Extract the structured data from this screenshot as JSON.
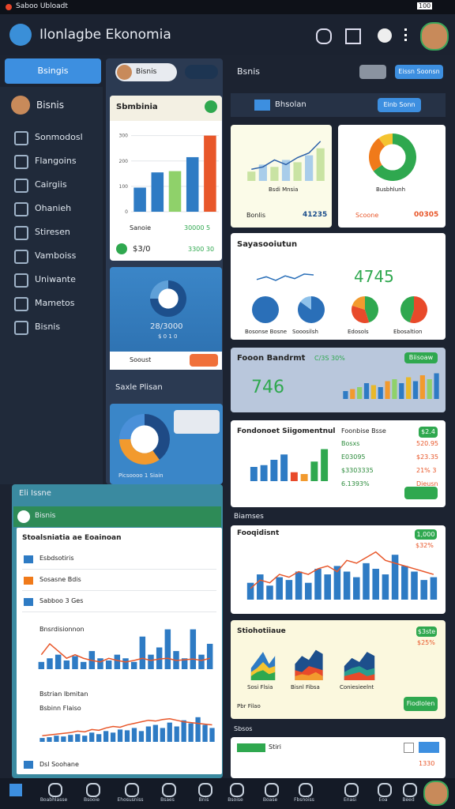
{
  "status_bar": {
    "app": "Saboo Ubloadt",
    "battery": "100"
  },
  "header": {
    "title": "Ilonlagbe Ekonomia"
  },
  "sidebar": {
    "button": "Bsingis",
    "user": "Bisnis",
    "items": [
      "Sonmodosl",
      "Flangoins",
      "Cairgiis",
      "Ohanieh",
      "Stiresen",
      "Vamboiss",
      "Uniwante",
      "Mametos",
      "Bisnis"
    ]
  },
  "middle": {
    "chip": "Bisnis",
    "card1": {
      "title": "Sbmbinia",
      "row1_label": "Sanoie",
      "row1_value": "30000 5",
      "row2_label": "$3/0",
      "row2_value": "3300 30"
    },
    "card2": {
      "value": "28/3000",
      "sub": "$ 0 1 0",
      "button_label": "Sooust"
    },
    "section": "Saxle Plisan",
    "card3": {
      "label": "Picsoooo 1 Siain"
    }
  },
  "right": {
    "title": "Bsnis",
    "button": "Eissn Soonsn",
    "panel_title": "Bhsolan",
    "panel_button": "Einb Sonn",
    "cardA": {
      "caption": "Bsdi Mnsia",
      "label": "Bonlis",
      "value": "41235"
    },
    "cardB": {
      "caption": "Busbhlunh",
      "label": "Scoone",
      "value": "00305"
    },
    "cardC": {
      "title": "Sayasooiutun",
      "value": "4745",
      "labels": [
        "Bosonse Bosne",
        "Sooosilsh",
        "Edosols",
        "Ebosaltion"
      ]
    },
    "cardD": {
      "title": "Fooon Bandrmt",
      "tag": "C/3S 30%",
      "value": "746",
      "button": "Biisoaw"
    },
    "cardE": {
      "title": "Fondonoet Siigomentnul",
      "side_title": "Foonbise Bsse",
      "rows": [
        [
          "Bosxs",
          "520.95"
        ],
        [
          "E03095",
          "$23.35"
        ],
        [
          "$3303335",
          "21% 3"
        ],
        [
          "6.1393%",
          "Dieusn"
        ]
      ],
      "tag": "$2.4"
    },
    "section": "Biamses",
    "cardF": {
      "title": "Fooqidisnt",
      "tag": "1,000",
      "value": "$32%"
    },
    "cardG": {
      "title": "Stiohotiiaue",
      "tag": "$3ste",
      "value": "$25%",
      "labels": [
        "Sosi Flsia",
        "Bisnl Fibsa",
        "Coniesieelnt"
      ],
      "button": "Fiodlolen",
      "foot": "Pbr Filao"
    },
    "section2": "Sbsos",
    "cardH": {
      "title": "Stiri",
      "value": "1330"
    }
  },
  "overlay": {
    "title": "Eli Issne",
    "sub": "Bisnis",
    "heading": "Stoalsniatia ae Eoainoan",
    "items": [
      "Esbdsotiris",
      "Sosasne Bdis",
      "Sabboo 3 Ges"
    ],
    "chart1_title": "Bnsrdisionnon",
    "chart2_title": "Bstrian Ibmitan",
    "chart2_sub": "Bsbinn Flaiso",
    "foot": "Dsl Soohane"
  },
  "nav": [
    "Boabhlasse",
    "Bsooie",
    "Ehosusniss",
    "Bsaes",
    "Bnis",
    "Bsoise",
    "Boase",
    "Fbsnoiss",
    "Enasi",
    "Eoa",
    "Beed"
  ],
  "charts": [
    {
      "type": "bar",
      "values": [
        95,
        155,
        160,
        215,
        300
      ],
      "colors": [
        "#2e7bc4",
        "#2e7bc4",
        "#8fd16a",
        "#2e7bc4",
        "#e8572a"
      ],
      "ylim": [
        0,
        330
      ],
      "yticks": [
        0,
        100,
        200,
        300
      ]
    },
    {
      "type": "bar",
      "values": [
        20,
        35,
        30,
        45,
        40,
        55,
        70
      ],
      "colors": [
        "#c9e3a3",
        "#a9cdea",
        "#c9e3a3",
        "#a9cdea",
        "#c9e3a3",
        "#a9cdea",
        "#c9e3a3"
      ],
      "line": [
        25,
        30,
        45,
        35,
        50,
        60,
        85
      ],
      "line_color": "#2a5fa8",
      "ylim": [
        0,
        100
      ]
    },
    {
      "type": "pie",
      "donut": true,
      "values": [
        65,
        25,
        10
      ],
      "colors": [
        "#2fa84f",
        "#f07a1a",
        "#f4c430"
      ]
    },
    {
      "type": "pie",
      "donut": true,
      "values": [
        75,
        25
      ],
      "colors": [
        "#1d4f8c",
        "#5fa0d8"
      ]
    },
    {
      "type": "pie",
      "donut": true,
      "values": [
        40,
        35,
        25
      ],
      "colors": [
        "#1e4a85",
        "#f29a2e",
        "#4a90d9"
      ]
    },
    {
      "type": "pie",
      "values": [
        100
      ],
      "colors": [
        "#2a6fb8"
      ]
    },
    {
      "type": "pie",
      "values": [
        85,
        15
      ],
      "colors": [
        "#2a6fb8",
        "#8ec1ea"
      ]
    },
    {
      "type": "pie",
      "values": [
        45,
        35,
        20
      ],
      "colors": [
        "#2fa84f",
        "#e84a2a",
        "#f29a2e"
      ]
    },
    {
      "type": "pie",
      "values": [
        55,
        45
      ],
      "colors": [
        "#e84a2a",
        "#2fa84f"
      ]
    },
    {
      "type": "line",
      "values": [
        40,
        55,
        35,
        60,
        45,
        70,
        65
      ],
      "ylim": [
        0,
        100
      ],
      "color": "#2a6fb8"
    },
    {
      "type": "bar",
      "values": [
        20,
        25,
        30,
        40,
        35,
        30,
        45,
        50,
        40,
        55,
        45,
        60,
        50,
        65
      ],
      "colors": [
        "#2e7bc4",
        "#f29a2e",
        "#8fd16a",
        "#2e7bc4",
        "#e8b82a"
      ],
      "ylim": [
        0,
        70
      ]
    },
    {
      "type": "bar",
      "values": [
        40,
        45,
        60,
        75,
        25,
        20,
        55,
        90
      ],
      "colors": [
        "#2e7bc4",
        "#2e7bc4",
        "#2e7bc4",
        "#2e7bc4",
        "#e84a2a",
        "#f29a2e",
        "#2fa84f",
        "#2fa84f"
      ],
      "ylim": [
        0,
        100
      ]
    },
    {
      "type": "bar",
      "values": [
        30,
        45,
        25,
        40,
        35,
        50,
        30,
        55,
        45,
        60,
        50,
        40,
        65,
        55,
        45,
        80,
        60,
        50,
        35,
        40
      ],
      "colors": [
        "#2e7bc4"
      ],
      "line": [
        20,
        35,
        30,
        45,
        40,
        50,
        45,
        55,
        60,
        50,
        70,
        65,
        75,
        85,
        70,
        65,
        60,
        55,
        50,
        45
      ],
      "line_color": "#e8572a",
      "ylim": [
        0,
        100
      ]
    },
    {
      "type": "area",
      "series": [
        {
          "color": "#2e7bc4",
          "values": [
            30,
            50,
            70,
            40,
            60
          ]
        },
        {
          "color": "#f4c430",
          "values": [
            20,
            30,
            45,
            30,
            35
          ]
        },
        {
          "color": "#2fa84f",
          "values": [
            10,
            20,
            25,
            15,
            20
          ]
        }
      ],
      "ylim": [
        0,
        80
      ]
    },
    {
      "type": "area",
      "series": [
        {
          "color": "#1d4f8c",
          "values": [
            40,
            60,
            50,
            75,
            65
          ]
        },
        {
          "color": "#e84a2a",
          "values": [
            25,
            20,
            35,
            30,
            25
          ]
        },
        {
          "color": "#f29a2e",
          "values": [
            10,
            15,
            12,
            20,
            10
          ]
        }
      ],
      "ylim": [
        0,
        80
      ]
    },
    {
      "type": "area",
      "series": [
        {
          "color": "#1d4f8c",
          "values": [
            35,
            55,
            45,
            70,
            60
          ]
        },
        {
          "color": "#2a9d8f",
          "values": [
            20,
            30,
            35,
            25,
            30
          ]
        },
        {
          "color": "#e84a2a",
          "values": [
            10,
            15,
            20,
            10,
            15
          ]
        }
      ],
      "ylim": [
        0,
        80
      ]
    },
    {
      "type": "bar",
      "values": [
        10,
        15,
        20,
        12,
        18,
        10,
        25,
        15,
        12,
        20,
        15,
        10,
        45,
        20,
        30,
        55,
        25,
        15,
        55,
        20,
        35
      ],
      "colors": [
        "#2e7bc4"
      ],
      "line": [
        20,
        35,
        25,
        15,
        20,
        15,
        12,
        10,
        15,
        12,
        10,
        12,
        15,
        12,
        14,
        15,
        12,
        13,
        14,
        12,
        15
      ],
      "line_color": "#e8572a",
      "ylim": [
        0,
        60
      ]
    },
    {
      "type": "bar",
      "values": [
        5,
        6,
        8,
        7,
        9,
        10,
        8,
        12,
        10,
        14,
        12,
        16,
        15,
        18,
        14,
        20,
        22,
        18,
        25,
        20,
        28,
        24,
        32,
        22,
        18
      ],
      "colors": [
        "#2e7bc4"
      ],
      "line": [
        8,
        9,
        10,
        11,
        12,
        14,
        13,
        16,
        15,
        18,
        20,
        19,
        22,
        24,
        26,
        28,
        27,
        29,
        30,
        28,
        26,
        25,
        24,
        23,
        22
      ],
      "line_color": "#e8572a",
      "ylim": [
        0,
        40
      ]
    }
  ]
}
